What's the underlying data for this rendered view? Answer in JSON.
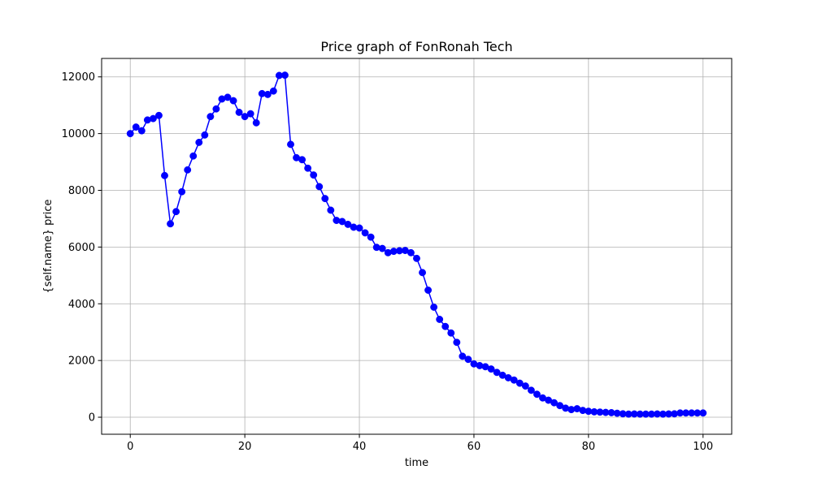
{
  "chart_data": {
    "type": "line",
    "title": "Price graph of FonRonah Tech",
    "xlabel": "time",
    "ylabel": "{self.name} price",
    "xlim": [
      -5,
      105
    ],
    "ylim": [
      -600,
      12650
    ],
    "xticks": [
      0,
      20,
      40,
      60,
      80,
      100
    ],
    "yticks": [
      0,
      2000,
      4000,
      6000,
      8000,
      10000,
      12000
    ],
    "grid": true,
    "series": [
      {
        "color": "#0000ff",
        "marker": "circle",
        "x": [
          0,
          1,
          2,
          3,
          4,
          5,
          6,
          7,
          8,
          9,
          10,
          11,
          12,
          13,
          14,
          15,
          16,
          17,
          18,
          19,
          20,
          21,
          22,
          23,
          24,
          25,
          26,
          27,
          28,
          29,
          30,
          31,
          32,
          33,
          34,
          35,
          36,
          37,
          38,
          39,
          40,
          41,
          42,
          43,
          44,
          45,
          46,
          47,
          48,
          49,
          50,
          51,
          52,
          53,
          54,
          55,
          56,
          57,
          58,
          59,
          60,
          61,
          62,
          63,
          64,
          65,
          66,
          67,
          68,
          69,
          70,
          71,
          72,
          73,
          74,
          75,
          76,
          77,
          78,
          79,
          80,
          81,
          82,
          83,
          84,
          85,
          86,
          87,
          88,
          89,
          90,
          91,
          92,
          93,
          94,
          95,
          96,
          97,
          98,
          99,
          100
        ],
        "values": [
          10000,
          10230,
          10100,
          10480,
          10530,
          10640,
          8520,
          6820,
          7250,
          7950,
          8720,
          9210,
          9690,
          9950,
          10600,
          10870,
          11220,
          11280,
          11160,
          10750,
          10600,
          10700,
          10380,
          11410,
          11380,
          11500,
          12050,
          12060,
          9620,
          9150,
          9080,
          8780,
          8540,
          8130,
          7710,
          7300,
          6940,
          6900,
          6800,
          6700,
          6670,
          6500,
          6350,
          5990,
          5950,
          5800,
          5850,
          5870,
          5880,
          5800,
          5600,
          5100,
          4480,
          3880,
          3450,
          3200,
          2970,
          2640,
          2150,
          2040,
          1880,
          1820,
          1780,
          1700,
          1580,
          1480,
          1390,
          1310,
          1200,
          1100,
          950,
          810,
          680,
          600,
          510,
          410,
          320,
          270,
          300,
          240,
          210,
          190,
          180,
          170,
          160,
          140,
          120,
          110,
          115,
          110,
          110,
          110,
          115,
          110,
          115,
          120,
          150,
          150,
          150,
          150,
          150
        ]
      }
    ]
  }
}
